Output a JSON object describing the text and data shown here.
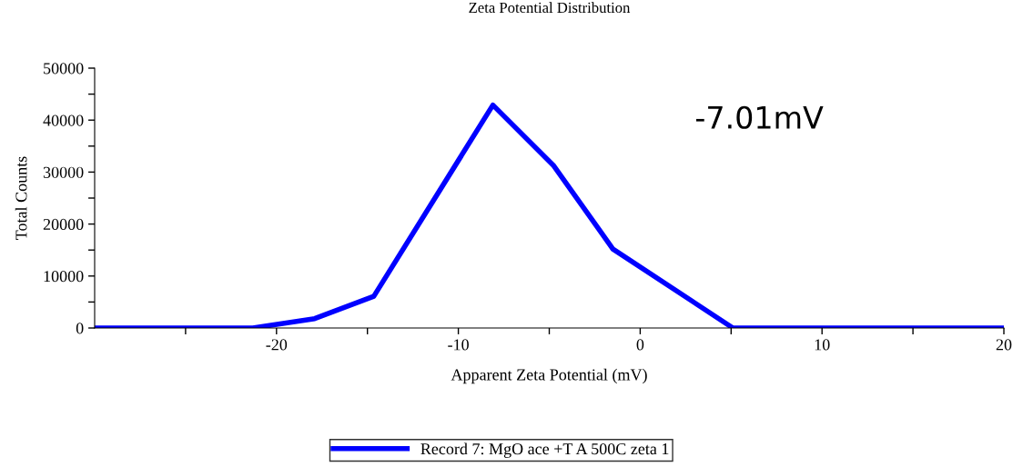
{
  "chart_data": {
    "type": "line",
    "title": "Zeta Potential Distribution",
    "xlabel": "Apparent Zeta Potential (mV)",
    "ylabel": "Total Counts",
    "x": [
      -30,
      -21.3,
      -17.9,
      -14.65,
      -8.1,
      -4.75,
      -1.5,
      5.1,
      20
    ],
    "series": [
      {
        "name": "Record 7: MgO ace +T A 500C zeta 1",
        "color": "#0000ff",
        "values": [
          0,
          0,
          1800,
          6100,
          42900,
          31200,
          15200,
          0,
          0
        ]
      }
    ],
    "xlim": [
      -30,
      20
    ],
    "ylim": [
      0,
      50000
    ],
    "xticks": [
      {
        "value": -25,
        "label": null
      },
      -20,
      {
        "value": -15,
        "label": null
      },
      -10,
      {
        "value": -5,
        "label": null
      },
      0,
      {
        "value": 5,
        "label": null
      },
      10,
      {
        "value": 15,
        "label": null
      },
      20
    ],
    "yticks": [
      0,
      {
        "value": 5000,
        "label": null
      },
      10000,
      {
        "value": 15000,
        "label": null
      },
      20000,
      {
        "value": 25000,
        "label": null
      },
      30000,
      {
        "value": 35000,
        "label": null
      },
      40000,
      {
        "value": 45000,
        "label": null
      },
      50000
    ],
    "annotations": [
      "-7.01mV"
    ],
    "legend": "bottom",
    "grid": false,
    "marker": "none",
    "line_style": "solid"
  }
}
